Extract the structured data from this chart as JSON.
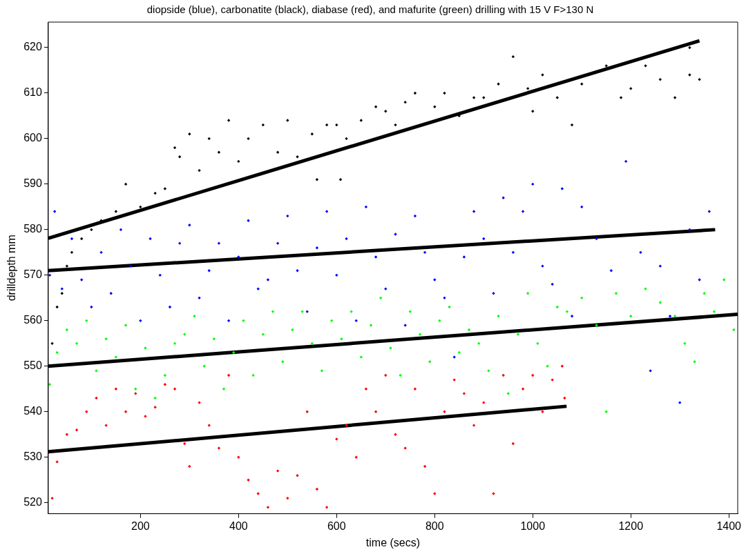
{
  "chart_data": {
    "type": "scatter",
    "title": "diopside (blue), carbonatite (black), diabase (red), and mafurite (green) drilling with 15 V F>130 N",
    "xlabel": "time (secs)",
    "ylabel": "drilldepth mm",
    "xlim": [
      12,
      1418
    ],
    "ylim": [
      517.6,
      625.6
    ],
    "xticks": [
      200,
      400,
      600,
      800,
      1000,
      1200,
      1400
    ],
    "yticks": [
      520,
      530,
      540,
      550,
      560,
      570,
      580,
      590,
      600,
      610,
      620
    ],
    "grid": false,
    "legend": false,
    "series": [
      {
        "marker": "diamond",
        "color": "#000000",
        "x": [
          20,
          30,
          40,
          50,
          60,
          80,
          100,
          120,
          150,
          170,
          200,
          230,
          250,
          270,
          280,
          300,
          320,
          340,
          360,
          380,
          400,
          420,
          450,
          480,
          500,
          520,
          550,
          560,
          580,
          600,
          608,
          620,
          650,
          680,
          700,
          720,
          740,
          760,
          800,
          820,
          850,
          880,
          900,
          930,
          960,
          990,
          1000,
          1020,
          1050,
          1080,
          1100,
          1150,
          1180,
          1200,
          1230,
          1260,
          1290,
          1320,
          1320,
          1340
        ],
        "values": [
          555,
          563,
          566,
          572,
          575,
          578,
          580,
          582,
          584,
          590,
          585,
          588,
          589,
          598,
          596,
          601,
          593,
          600,
          597,
          604,
          595,
          600,
          603,
          597,
          604,
          596,
          601,
          591,
          603,
          603,
          591,
          600,
          604,
          607,
          606,
          603,
          608,
          610,
          607,
          610,
          605,
          609,
          609,
          612,
          618,
          611,
          606,
          614,
          609,
          603,
          612,
          616,
          609,
          611,
          616,
          613,
          609,
          614,
          620,
          613
        ]
      },
      {
        "marker": "diamond",
        "color": "#0000ff",
        "x": [
          15,
          25,
          40,
          60,
          80,
          100,
          120,
          140,
          160,
          180,
          200,
          220,
          240,
          260,
          280,
          300,
          320,
          340,
          360,
          380,
          400,
          420,
          440,
          460,
          480,
          500,
          520,
          540,
          560,
          580,
          600,
          620,
          640,
          660,
          680,
          700,
          720,
          740,
          760,
          780,
          800,
          820,
          840,
          860,
          880,
          900,
          920,
          940,
          960,
          980,
          1000,
          1020,
          1040,
          1060,
          1080,
          1100,
          1130,
          1160,
          1190,
          1220,
          1240,
          1260,
          1280,
          1300,
          1320,
          1340,
          1360
        ],
        "values": [
          570,
          584,
          567,
          578,
          569,
          563,
          575,
          566,
          580,
          572,
          560,
          578,
          570,
          563,
          577,
          581,
          565,
          571,
          577,
          560,
          574,
          582,
          567,
          569,
          577,
          583,
          571,
          562,
          576,
          584,
          570,
          578,
          560,
          585,
          574,
          567,
          579,
          559,
          583,
          575,
          569,
          565,
          552,
          574,
          584,
          578,
          566,
          587,
          575,
          584,
          590,
          572,
          568,
          589,
          561,
          585,
          578,
          571,
          595,
          575,
          549,
          572,
          561,
          542,
          580,
          569,
          584
        ]
      },
      {
        "marker": "diamond",
        "color": "#ff0000",
        "x": [
          20,
          30,
          50,
          70,
          90,
          110,
          130,
          150,
          170,
          190,
          210,
          230,
          250,
          270,
          290,
          300,
          320,
          340,
          360,
          380,
          400,
          420,
          440,
          460,
          480,
          500,
          520,
          540,
          560,
          580,
          600,
          620,
          640,
          660,
          680,
          700,
          720,
          740,
          760,
          780,
          800,
          820,
          840,
          860,
          880,
          900,
          920,
          940,
          960,
          980,
          1000,
          1020,
          1040,
          1060,
          1065
        ],
        "values": [
          521,
          529,
          535,
          536,
          540,
          543,
          537,
          545,
          540,
          544,
          539,
          541,
          546,
          545,
          533,
          528,
          542,
          537,
          532,
          548,
          530,
          525,
          522,
          519,
          527,
          521,
          526,
          540,
          523,
          519,
          534,
          537,
          530,
          545,
          540,
          548,
          535,
          532,
          545,
          528,
          522,
          540,
          547,
          544,
          537,
          542,
          522,
          548,
          533,
          545,
          548,
          540,
          547,
          550,
          543
        ]
      },
      {
        "marker": "diamond",
        "color": "#00ff00",
        "x": [
          15,
          30,
          50,
          70,
          90,
          110,
          130,
          150,
          170,
          190,
          210,
          230,
          250,
          270,
          290,
          310,
          330,
          350,
          370,
          390,
          410,
          430,
          450,
          470,
          490,
          510,
          530,
          550,
          570,
          590,
          610,
          630,
          650,
          670,
          690,
          710,
          730,
          750,
          770,
          790,
          810,
          830,
          850,
          870,
          890,
          910,
          930,
          950,
          970,
          990,
          1010,
          1030,
          1050,
          1070,
          1100,
          1130,
          1150,
          1170,
          1200,
          1230,
          1260,
          1290,
          1310,
          1330,
          1350,
          1370,
          1390,
          1410
        ],
        "values": [
          546,
          553,
          558,
          555,
          560,
          549,
          556,
          552,
          559,
          545,
          554,
          543,
          548,
          555,
          557,
          561,
          550,
          556,
          545,
          553,
          560,
          548,
          557,
          562,
          551,
          558,
          562,
          555,
          549,
          560,
          556,
          562,
          552,
          559,
          565,
          554,
          548,
          562,
          557,
          551,
          560,
          563,
          553,
          558,
          555,
          549,
          561,
          544,
          557,
          566,
          555,
          550,
          563,
          562,
          565,
          559,
          540,
          566,
          561,
          567,
          564,
          561,
          555,
          551,
          566,
          562,
          569,
          558
        ]
      },
      {
        "type": "line",
        "color": "#000000",
        "x": [
          12,
          1340
        ],
        "marker": "none",
        "values": [
          578.1,
          621.5
        ]
      },
      {
        "type": "line",
        "color": "#000000",
        "x": [
          12,
          1372
        ],
        "marker": "none",
        "values": [
          571,
          580
        ]
      },
      {
        "type": "line",
        "color": "#000000",
        "x": [
          12,
          1418
        ],
        "marker": "none",
        "values": [
          550,
          561.4
        ]
      },
      {
        "type": "line",
        "color": "#000000",
        "x": [
          12,
          1069
        ],
        "marker": "none",
        "values": [
          531.2,
          541.2
        ]
      }
    ]
  }
}
